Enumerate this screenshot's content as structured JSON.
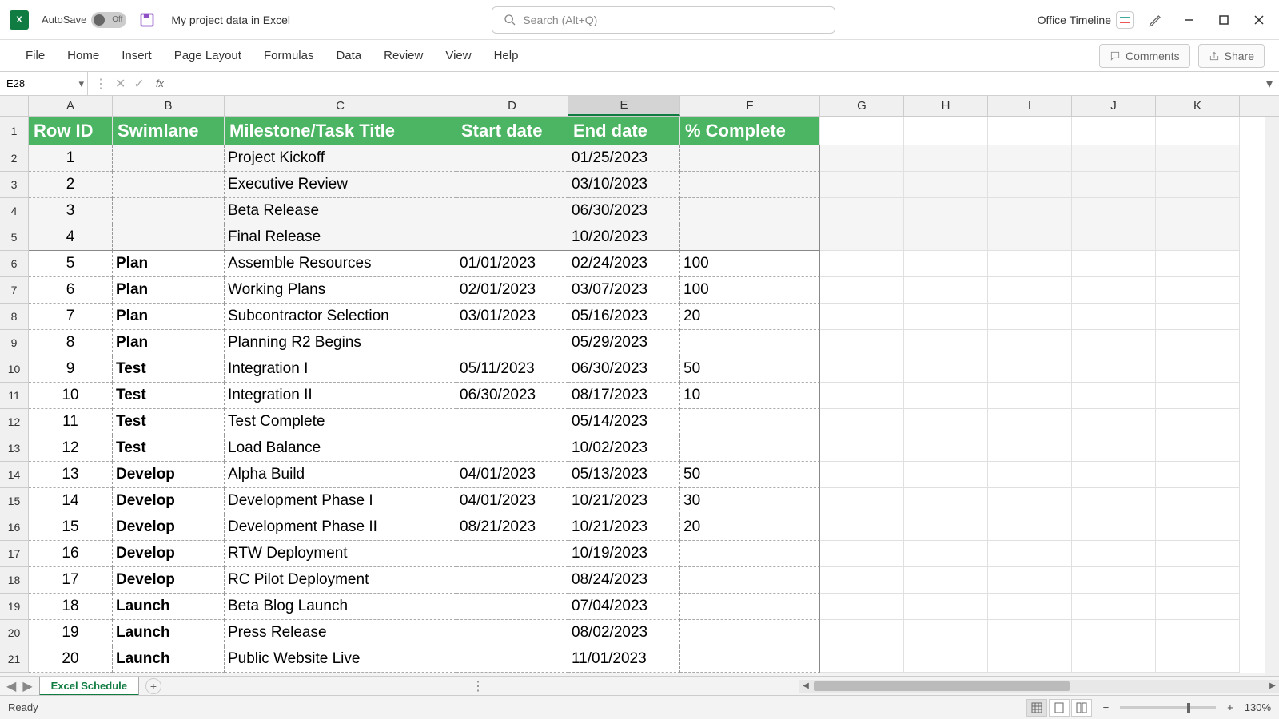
{
  "titlebar": {
    "autosave_label": "AutoSave",
    "autosave_state": "Off",
    "doc_title": "My project data in Excel",
    "search_placeholder": "Search (Alt+Q)",
    "office_timeline": "Office Timeline"
  },
  "ribbon": {
    "tabs": [
      "File",
      "Home",
      "Insert",
      "Page Layout",
      "Formulas",
      "Data",
      "Review",
      "View",
      "Help"
    ],
    "comments": "Comments",
    "share": "Share"
  },
  "formula": {
    "name_box": "E28",
    "fx": "fx"
  },
  "columns": {
    "letters": [
      "A",
      "B",
      "C",
      "D",
      "E",
      "F",
      "G",
      "H",
      "I",
      "J",
      "K"
    ],
    "widths": [
      105,
      140,
      290,
      140,
      140,
      175,
      105,
      105,
      105,
      105,
      105
    ],
    "selected_index": 4
  },
  "headers": [
    "Row ID",
    "Swimlane",
    "Milestone/Task Title",
    "Start date",
    "End date",
    "% Complete"
  ],
  "header_bg": "#4bb563",
  "rows": [
    {
      "n": 1,
      "id": "1",
      "swim": "",
      "title": "Project Kickoff",
      "start": "",
      "end": "01/25/2023",
      "pct": "",
      "milestone": true
    },
    {
      "n": 2,
      "id": "2",
      "swim": "",
      "title": "Executive Review",
      "start": "",
      "end": "03/10/2023",
      "pct": "",
      "milestone": true
    },
    {
      "n": 3,
      "id": "3",
      "swim": "",
      "title": "Beta Release",
      "start": "",
      "end": "06/30/2023",
      "pct": "",
      "milestone": true
    },
    {
      "n": 4,
      "id": "4",
      "swim": "",
      "title": "Final Release",
      "start": "",
      "end": "10/20/2023",
      "pct": "",
      "milestone": true,
      "solid_bottom": true
    },
    {
      "n": 5,
      "id": "5",
      "swim": "Plan",
      "title": "Assemble Resources",
      "start": "01/01/2023",
      "end": "02/24/2023",
      "pct": "100"
    },
    {
      "n": 6,
      "id": "6",
      "swim": "Plan",
      "title": "Working Plans",
      "start": "02/01/2023",
      "end": "03/07/2023",
      "pct": "100"
    },
    {
      "n": 7,
      "id": "7",
      "swim": "Plan",
      "title": "Subcontractor Selection",
      "start": "03/01/2023",
      "end": "05/16/2023",
      "pct": "20"
    },
    {
      "n": 8,
      "id": "8",
      "swim": "Plan",
      "title": "Planning R2 Begins",
      "start": "",
      "end": "05/29/2023",
      "pct": ""
    },
    {
      "n": 9,
      "id": "9",
      "swim": "Test",
      "title": "Integration I",
      "start": "05/11/2023",
      "end": "06/30/2023",
      "pct": "50"
    },
    {
      "n": 10,
      "id": "10",
      "swim": "Test",
      "title": "Integration II",
      "start": "06/30/2023",
      "end": "08/17/2023",
      "pct": "10"
    },
    {
      "n": 11,
      "id": "11",
      "swim": "Test",
      "title": "Test Complete",
      "start": "",
      "end": "05/14/2023",
      "pct": ""
    },
    {
      "n": 12,
      "id": "12",
      "swim": "Test",
      "title": "Load Balance",
      "start": "",
      "end": "10/02/2023",
      "pct": ""
    },
    {
      "n": 13,
      "id": "13",
      "swim": "Develop",
      "title": "Alpha Build",
      "start": "04/01/2023",
      "end": "05/13/2023",
      "pct": "50"
    },
    {
      "n": 14,
      "id": "14",
      "swim": "Develop",
      "title": "Development Phase I",
      "start": "04/01/2023",
      "end": "10/21/2023",
      "pct": "30"
    },
    {
      "n": 15,
      "id": "15",
      "swim": "Develop",
      "title": "Development Phase II",
      "start": "08/21/2023",
      "end": "10/21/2023",
      "pct": "20"
    },
    {
      "n": 16,
      "id": "16",
      "swim": "Develop",
      "title": "RTW Deployment",
      "start": "",
      "end": "10/19/2023",
      "pct": ""
    },
    {
      "n": 17,
      "id": "17",
      "swim": "Develop",
      "title": "RC Pilot Deployment",
      "start": "",
      "end": "08/24/2023",
      "pct": ""
    },
    {
      "n": 18,
      "id": "18",
      "swim": "Launch",
      "title": "Beta Blog Launch",
      "start": "",
      "end": "07/04/2023",
      "pct": ""
    },
    {
      "n": 19,
      "id": "19",
      "swim": "Launch",
      "title": "Press Release",
      "start": "",
      "end": "08/02/2023",
      "pct": ""
    },
    {
      "n": 20,
      "id": "20",
      "swim": "Launch",
      "title": "Public Website Live",
      "start": "",
      "end": "11/01/2023",
      "pct": ""
    }
  ],
  "sheet": {
    "tab": "Excel Schedule"
  },
  "status": {
    "ready": "Ready",
    "zoom": "130%"
  }
}
